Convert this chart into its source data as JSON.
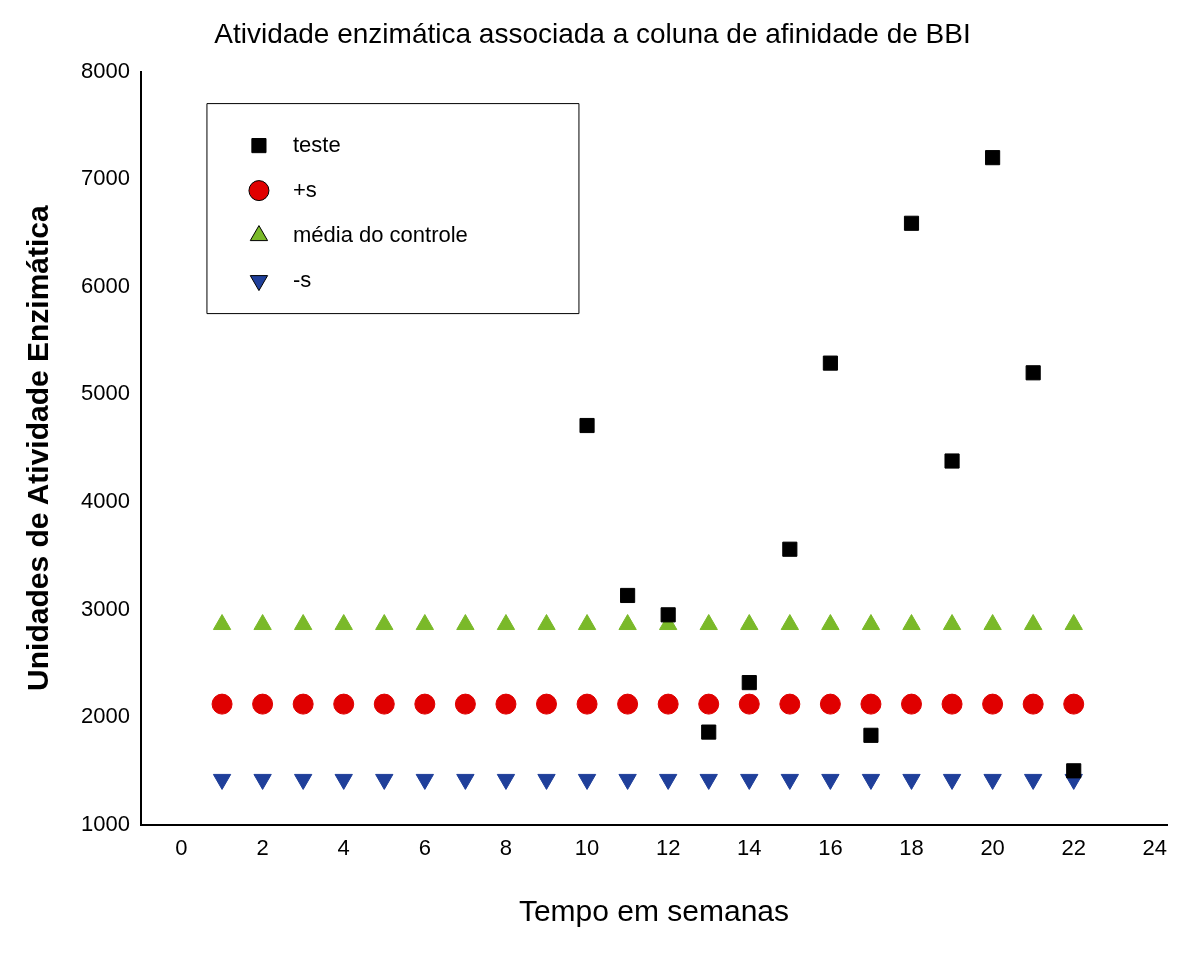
{
  "chart_data": {
    "type": "scatter",
    "title": "Atividade enzimática associada a coluna de afinidade de BBI",
    "xlabel": "Tempo em semanas",
    "ylabel": "Unidades de Atividade Enzimática",
    "xlim": [
      -1,
      24.3
    ],
    "xticks": [
      0,
      2,
      4,
      6,
      8,
      10,
      12,
      14,
      16,
      18,
      20,
      22,
      24
    ],
    "ylim": [
      1000,
      8000
    ],
    "yticks": [
      1000,
      2000,
      3000,
      4000,
      5000,
      6000,
      7000,
      8000
    ],
    "grid": false,
    "legend": "top left",
    "series": [
      {
        "name": "teste",
        "color": "#000000",
        "marker": "square",
        "x": [
          10,
          11,
          12,
          13,
          14,
          15,
          16,
          17,
          18,
          19,
          20,
          21,
          22
        ],
        "values": [
          4710,
          3130,
          2950,
          1860,
          2320,
          3560,
          5290,
          1830,
          6590,
          4380,
          7200,
          5200,
          1500
        ]
      },
      {
        "name": "+s",
        "color": "#e00000",
        "marker": "circle",
        "x": [
          1,
          2,
          3,
          4,
          5,
          6,
          7,
          8,
          9,
          10,
          11,
          12,
          13,
          14,
          15,
          16,
          17,
          18,
          19,
          20,
          21,
          22
        ],
        "values": [
          2120,
          2120,
          2120,
          2120,
          2120,
          2120,
          2120,
          2120,
          2120,
          2120,
          2120,
          2120,
          2120,
          2120,
          2120,
          2120,
          2120,
          2120,
          2120,
          2120,
          2120,
          2120
        ]
      },
      {
        "name": "média do controle",
        "color": "#7ab929",
        "marker": "triangle",
        "x": [
          1,
          2,
          3,
          4,
          5,
          6,
          7,
          8,
          9,
          10,
          11,
          12,
          13,
          14,
          15,
          16,
          17,
          18,
          19,
          20,
          21,
          22
        ],
        "values": [
          2860,
          2860,
          2860,
          2860,
          2860,
          2860,
          2860,
          2860,
          2860,
          2860,
          2860,
          2860,
          2860,
          2860,
          2860,
          2860,
          2860,
          2860,
          2860,
          2860,
          2860,
          2860
        ]
      },
      {
        "name": "-s",
        "color": "#1f3f9a",
        "marker": "triangle-down",
        "x": [
          1,
          2,
          3,
          4,
          5,
          6,
          7,
          8,
          9,
          10,
          11,
          12,
          13,
          14,
          15,
          16,
          17,
          18,
          19,
          20,
          21,
          22
        ],
        "values": [
          1420,
          1420,
          1420,
          1420,
          1420,
          1420,
          1420,
          1420,
          1420,
          1420,
          1420,
          1420,
          1420,
          1420,
          1420,
          1420,
          1420,
          1420,
          1420,
          1420,
          1420,
          1420
        ]
      }
    ]
  }
}
